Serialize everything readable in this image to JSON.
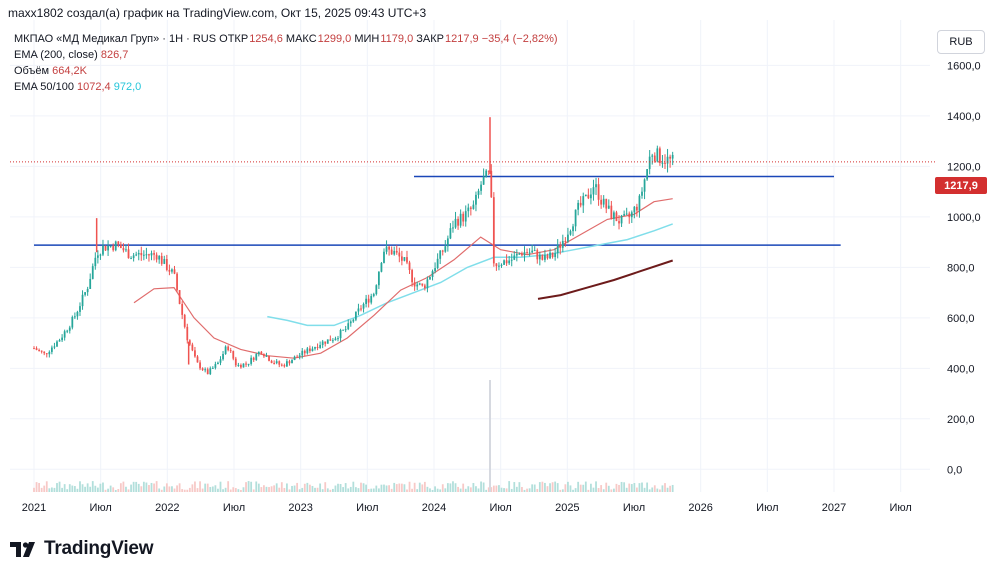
{
  "attribution": "maxx1802 создал(а) график на TradingView.com, Окт 15, 2025 09:43 UTC+3",
  "legend": {
    "symbol_line": "МКПАО «МД Медикал Груп» · 1Н · RUS",
    "open_label": "ОТКР",
    "open_value": "1254,6",
    "high_label": "МАКС",
    "high_value": "1299,0",
    "low_label": "МИН",
    "low_value": "1179,0",
    "close_label": "ЗАКР",
    "close_value": "1217,9",
    "change": "−35,4 (−2,82%)",
    "ema200_label": "EMA (200, close)",
    "ema200_value": "826,7",
    "volume_label": "Объём",
    "volume_value": "664,2K",
    "ema50100_label": "EMA 50/100",
    "ema50_value": "1072,4",
    "ema100_value": "972,0"
  },
  "currency_button": "RUB",
  "last_price_tag": "1217,9",
  "brand": "TradingView",
  "colors": {
    "up": "#26a69a",
    "down": "#ef5350",
    "ema50": "#e06c6c",
    "ema100": "#80deea",
    "ema200": "#6d1b1b",
    "hline": "#1a47b8",
    "price_tag": "#d32f2f"
  },
  "chart_data": {
    "type": "candlestick",
    "y_unit": "RUB",
    "ylim": [
      -90,
      1780
    ],
    "xlim": [
      2020.82,
      2027.72
    ],
    "y_ticks": [
      "1600,0",
      "1400,0",
      "1200,0",
      "1000,0",
      "800,0",
      "600,0",
      "400,0",
      "200,0",
      "0,0"
    ],
    "y_tick_values": [
      1600,
      1400,
      1200,
      1000,
      800,
      600,
      400,
      200,
      0
    ],
    "x_ticks": [
      "2021",
      "Июл",
      "2022",
      "Июл",
      "2023",
      "Июл",
      "2024",
      "Июл",
      "2025",
      "Июл",
      "2026",
      "Июл",
      "2027",
      "Июл"
    ],
    "x_tick_values": [
      2021.0,
      2021.5,
      2022.0,
      2022.5,
      2023.0,
      2023.5,
      2024.0,
      2024.5,
      2025.0,
      2025.5,
      2026.0,
      2026.5,
      2027.0,
      2027.5
    ],
    "price_path": [
      [
        2021.0,
        480
      ],
      [
        2021.08,
        455
      ],
      [
        2021.2,
        520
      ],
      [
        2021.3,
        600
      ],
      [
        2021.4,
        720
      ],
      [
        2021.47,
        860
      ],
      [
        2021.52,
        880
      ],
      [
        2021.62,
        890
      ],
      [
        2021.72,
        850
      ],
      [
        2021.82,
        850
      ],
      [
        2021.92,
        850
      ],
      [
        2022.0,
        800
      ],
      [
        2022.05,
        770
      ],
      [
        2022.1,
        640
      ],
      [
        2022.15,
        520
      ],
      [
        2022.22,
        420
      ],
      [
        2022.3,
        380
      ],
      [
        2022.38,
        420
      ],
      [
        2022.45,
        490
      ],
      [
        2022.52,
        410
      ],
      [
        2022.6,
        420
      ],
      [
        2022.7,
        470
      ],
      [
        2022.78,
        430
      ],
      [
        2022.86,
        410
      ],
      [
        2022.95,
        440
      ],
      [
        2023.05,
        470
      ],
      [
        2023.15,
        500
      ],
      [
        2023.25,
        520
      ],
      [
        2023.35,
        560
      ],
      [
        2023.45,
        640
      ],
      [
        2023.55,
        700
      ],
      [
        2023.62,
        870
      ],
      [
        2023.7,
        860
      ],
      [
        2023.78,
        820
      ],
      [
        2023.85,
        740
      ],
      [
        2023.92,
        720
      ],
      [
        2024.0,
        800
      ],
      [
        2024.08,
        880
      ],
      [
        2024.15,
        980
      ],
      [
        2024.22,
        1000
      ],
      [
        2024.3,
        1040
      ],
      [
        2024.36,
        1140
      ],
      [
        2024.42,
        1170
      ],
      [
        2024.45,
        810
      ],
      [
        2024.5,
        820
      ],
      [
        2024.58,
        830
      ],
      [
        2024.66,
        860
      ],
      [
        2024.74,
        860
      ],
      [
        2024.82,
        830
      ],
      [
        2024.9,
        850
      ],
      [
        2024.96,
        900
      ],
      [
        2025.02,
        960
      ],
      [
        2025.08,
        1030
      ],
      [
        2025.14,
        1070
      ],
      [
        2025.2,
        1130
      ],
      [
        2025.26,
        1060
      ],
      [
        2025.33,
        1010
      ],
      [
        2025.4,
        980
      ],
      [
        2025.47,
        1000
      ],
      [
        2025.54,
        1060
      ],
      [
        2025.58,
        1150
      ],
      [
        2025.63,
        1260
      ],
      [
        2025.68,
        1240
      ],
      [
        2025.73,
        1230
      ],
      [
        2025.79,
        1218
      ]
    ],
    "spikes": [
      {
        "x": 2021.47,
        "high": 995
      },
      {
        "x": 2024.42,
        "high": 1395
      },
      {
        "x": 2024.45,
        "low": 810
      },
      {
        "x": 2022.16,
        "low": 415
      }
    ],
    "ema50": [
      [
        2021.75,
        660
      ],
      [
        2021.9,
        715
      ],
      [
        2022.05,
        720
      ],
      [
        2022.2,
        600
      ],
      [
        2022.35,
        520
      ],
      [
        2022.55,
        475
      ],
      [
        2022.75,
        450
      ],
      [
        2022.95,
        440
      ],
      [
        2023.15,
        460
      ],
      [
        2023.35,
        520
      ],
      [
        2023.55,
        610
      ],
      [
        2023.75,
        710
      ],
      [
        2023.95,
        760
      ],
      [
        2024.15,
        830
      ],
      [
        2024.35,
        920
      ],
      [
        2024.5,
        870
      ],
      [
        2024.7,
        850
      ],
      [
        2024.9,
        870
      ],
      [
        2025.1,
        930
      ],
      [
        2025.3,
        990
      ],
      [
        2025.5,
        1010
      ],
      [
        2025.65,
        1060
      ],
      [
        2025.79,
        1072
      ]
    ],
    "ema100": [
      [
        2022.75,
        605
      ],
      [
        2022.9,
        590
      ],
      [
        2023.05,
        570
      ],
      [
        2023.25,
        570
      ],
      [
        2023.45,
        610
      ],
      [
        2023.65,
        660
      ],
      [
        2023.85,
        700
      ],
      [
        2024.05,
        740
      ],
      [
        2024.25,
        800
      ],
      [
        2024.45,
        840
      ],
      [
        2024.65,
        840
      ],
      [
        2024.85,
        850
      ],
      [
        2025.05,
        870
      ],
      [
        2025.25,
        890
      ],
      [
        2025.45,
        910
      ],
      [
        2025.65,
        945
      ],
      [
        2025.79,
        972
      ]
    ],
    "ema200": [
      [
        2024.78,
        675
      ],
      [
        2024.95,
        690
      ],
      [
        2025.15,
        720
      ],
      [
        2025.35,
        750
      ],
      [
        2025.55,
        785
      ],
      [
        2025.79,
        827
      ]
    ],
    "horizontal_lines": [
      {
        "y": 888,
        "x_from": 2021.0,
        "x_to": 2027.05
      },
      {
        "y": 1160,
        "x_from": 2023.85,
        "x_to": 2027.0
      }
    ],
    "last_price": 1217.9,
    "volume_spike_x": 2024.42
  }
}
